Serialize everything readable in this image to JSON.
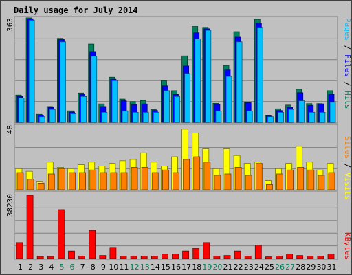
{
  "chart_data": {
    "type": "bar",
    "title": "Daily usage for July 2014",
    "categories": [
      "1",
      "2",
      "3",
      "4",
      "5",
      "6",
      "7",
      "8",
      "9",
      "10",
      "11",
      "12",
      "13",
      "14",
      "15",
      "16",
      "17",
      "18",
      "19",
      "20",
      "21",
      "22",
      "23",
      "24",
      "25",
      "26",
      "27",
      "28",
      "29",
      "30",
      "31"
    ],
    "weekend_days": [
      "5",
      "6",
      "12",
      "13",
      "19",
      "20",
      "26",
      "27"
    ],
    "colors": {
      "background": "#C0C0C0",
      "frame": "#808080",
      "title": "#0000CC",
      "hits": "#00805C",
      "files": "#0000FF",
      "pages": "#00C0FF",
      "visits": "#FFFF00",
      "sites": "#FF8000",
      "kbytes": "#FF0000",
      "weekend_label": "#00805C",
      "weekday_label": "#000000"
    },
    "panels": [
      {
        "id": "hits-files-pages",
        "ymax": 363,
        "ymax_label": "363",
        "legend": [
          {
            "text": "Pages",
            "color": "#00C0FF"
          },
          {
            "text": " / ",
            "color": "#000000"
          },
          {
            "text": "Files",
            "color": "#0000FF"
          },
          {
            "text": " / ",
            "color": "#000000"
          },
          {
            "text": "Hits",
            "color": "#00805C"
          }
        ],
        "series": [
          {
            "name": "Hits",
            "color": "#00805C",
            "values": [
              95,
              363,
              28,
              55,
              292,
              40,
              102,
              272,
              64,
              157,
              81,
              72,
              76,
              45,
              145,
              110,
              231,
              333,
              330,
              66,
              198,
              315,
              70,
              358,
              24,
              47,
              60,
              115,
              65,
              65,
              110
            ]
          },
          {
            "name": "Files",
            "color": "#0000FF",
            "values": [
              90,
              360,
              25,
              52,
              288,
              36,
              98,
              246,
              55,
              150,
              75,
              61,
              64,
              41,
              127,
              97,
              196,
              311,
              325,
              62,
              182,
              296,
              68,
              344,
              22,
              41,
              52,
              103,
              59,
              64,
              98
            ]
          },
          {
            "name": "Pages",
            "color": "#00C0FF",
            "values": [
              85,
              355,
              20,
              45,
              280,
              30,
              90,
              230,
              35,
              145,
              40,
              35,
              35,
              35,
              110,
              90,
              170,
              290,
              320,
              40,
              160,
              280,
              40,
              330,
              20,
              35,
              45,
              75,
              35,
              35,
              70
            ]
          }
        ]
      },
      {
        "id": "visits-sites",
        "ymax": 48,
        "ymax_label": "48",
        "legend": [
          {
            "text": "Sites",
            "color": "#FF8000"
          },
          {
            "text": " / ",
            "color": "#000000"
          },
          {
            "text": "Visits",
            "color": "#FFFF00"
          }
        ],
        "series": [
          {
            "name": "Visits",
            "color": "#FFFF00",
            "values": [
              16,
              14,
              6,
              21,
              17,
              16,
              19,
              21,
              18,
              20,
              22,
              23,
              28,
              21,
              18,
              25,
              46,
              43,
              31,
              16,
              31,
              26,
              20,
              21,
              7,
              16,
              20,
              33,
              21,
              15,
              20
            ]
          },
          {
            "name": "Sites",
            "color": "#FF8000",
            "values": [
              13,
              8,
              5,
              12,
              16,
              13,
              13,
              15,
              13,
              13,
              13,
              17,
              17,
              13,
              15,
              13,
              23,
              25,
              21,
              11,
              12,
              17,
              11,
              20,
              4,
              12,
              15,
              17,
              15,
              11,
              13
            ]
          }
        ]
      },
      {
        "id": "kbytes",
        "ymax": 38230,
        "ymax_label": "38230",
        "legend": [
          {
            "text": "KBytes",
            "color": "#FF0000"
          }
        ],
        "series": [
          {
            "name": "KBytes",
            "color": "#FF0000",
            "values": [
              9600,
              38230,
              1300,
              1300,
              29500,
              4500,
              1500,
              17000,
              1800,
              6700,
              1500,
              1500,
              1500,
              1500,
              2700,
              2700,
              4500,
              6200,
              9600,
              1500,
              1800,
              4500,
              1500,
              8000,
              1000,
              1500,
              2700,
              1800,
              1500,
              1500,
              2700
            ]
          }
        ]
      }
    ]
  }
}
